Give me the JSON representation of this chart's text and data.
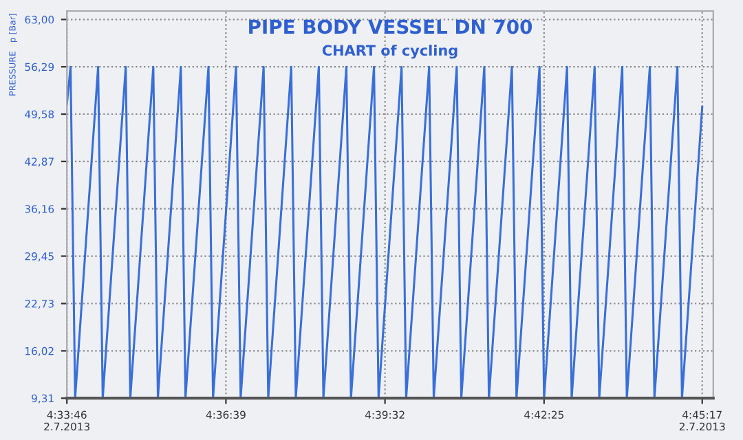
{
  "chart_data": {
    "type": "line",
    "title": "PIPE BODY VESSEL DN 700",
    "subtitle": "CHART of cycling",
    "ylabel": "PRESSURE   p [Bar]",
    "series": [
      {
        "color": "#3a6fd8",
        "x": [
          4.56278,
          4.56389,
          4.56528,
          4.57222,
          4.57361,
          4.58056,
          4.58194,
          4.58889,
          4.59028,
          4.59722,
          4.59861,
          4.60556,
          4.60694,
          4.61389,
          4.61528,
          4.62222,
          4.62361,
          4.63056,
          4.63194,
          4.63889,
          4.64028,
          4.64722,
          4.64861,
          4.65556,
          4.65694,
          4.66389,
          4.66528,
          4.67222,
          4.67361,
          4.68056,
          4.68194,
          4.68889,
          4.69028,
          4.69722,
          4.69861,
          4.70556,
          4.70694,
          4.71389,
          4.71528,
          4.72222,
          4.72361,
          4.73056,
          4.73194,
          4.73889,
          4.74028,
          4.74722,
          4.74861,
          4.75472
        ],
        "values": [
          51,
          56.29,
          9.31,
          56.29,
          9.31,
          56.29,
          9.31,
          56.29,
          9.31,
          56.29,
          9.31,
          56.29,
          9.31,
          56.29,
          9.31,
          56.29,
          9.31,
          56.29,
          9.31,
          56.29,
          9.31,
          56.29,
          9.31,
          56.29,
          9.31,
          56.29,
          9.31,
          56.29,
          9.31,
          56.29,
          9.31,
          56.29,
          9.31,
          56.29,
          9.31,
          56.29,
          9.31,
          56.29,
          9.31,
          56.29,
          9.31,
          56.29,
          9.31,
          56.29,
          9.31,
          56.29,
          9.31,
          50.6
        ]
      }
    ],
    "xlim": [
      4.56278,
      4.75806
    ],
    "ylim": [
      9.31,
      64.2
    ],
    "xticks": [
      {
        "value": 4.56278,
        "label": "4:33:46\n2.7.2013"
      },
      {
        "value": 4.61083,
        "label": "4:36:39"
      },
      {
        "value": 4.65889,
        "label": "4:39:32"
      },
      {
        "value": 4.70694,
        "label": "4:42:25"
      },
      {
        "value": 4.75472,
        "label": "4:45:17\n2.7.2013"
      }
    ],
    "yticks": [
      {
        "value": 9.31,
        "label": "9,31"
      },
      {
        "value": 16.02,
        "label": "16,02"
      },
      {
        "value": 22.73,
        "label": "22,73"
      },
      {
        "value": 29.45,
        "label": "29,45"
      },
      {
        "value": 36.16,
        "label": "36,16"
      },
      {
        "value": 42.87,
        "label": "42,87"
      },
      {
        "value": 49.58,
        "label": "49,58"
      },
      {
        "value": 56.29,
        "label": "56,29"
      },
      {
        "value": 63.0,
        "label": "63,00"
      }
    ],
    "grid": true,
    "marker": "none",
    "line_style": "solid"
  }
}
